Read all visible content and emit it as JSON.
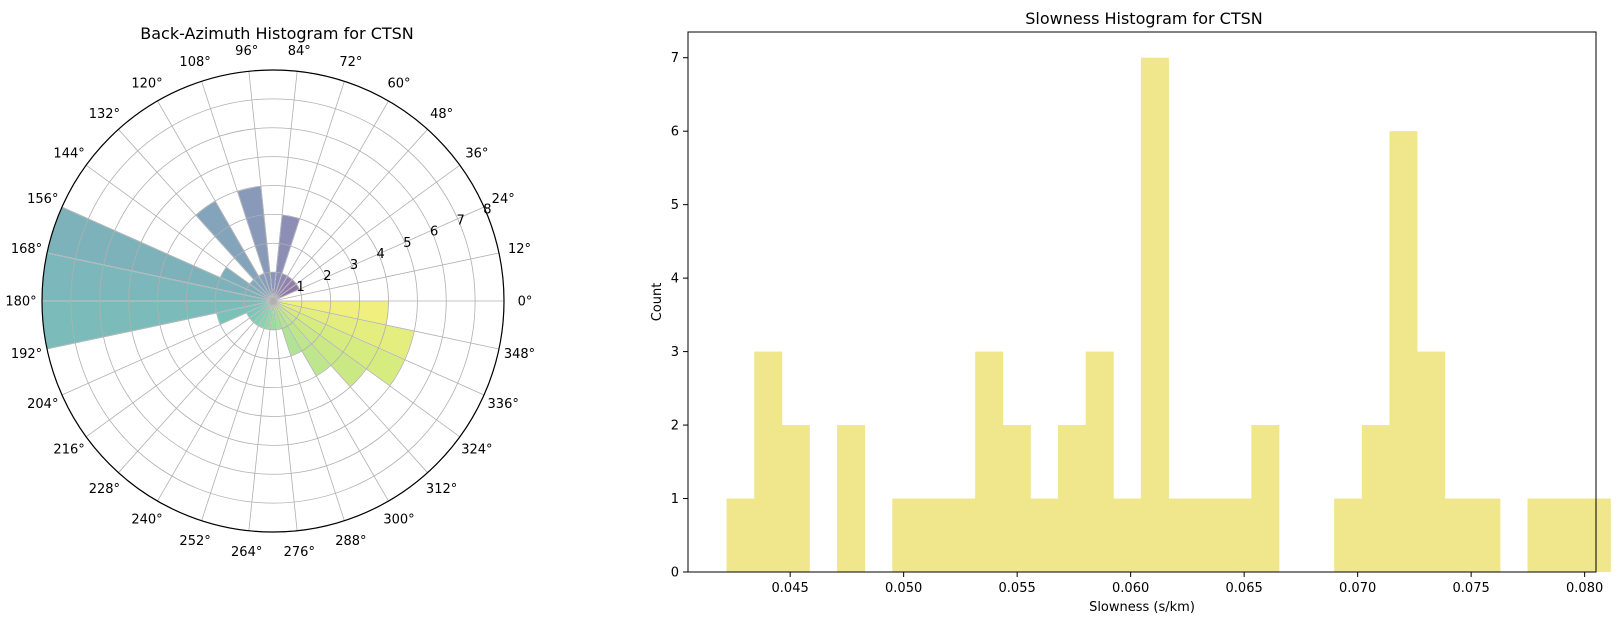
{
  "chart_data": [
    {
      "type": "polar-bar",
      "title": "Back-Azimuth Histogram for CTSN",
      "angle_ticks": [
        "0°",
        "12°",
        "24°",
        "36°",
        "48°",
        "60°",
        "72°",
        "84°",
        "96°",
        "108°",
        "120°",
        "132°",
        "144°",
        "156°",
        "168°",
        "180°",
        "192°",
        "204°",
        "216°",
        "228°",
        "240°",
        "252°",
        "264°",
        "276°",
        "288°",
        "300°",
        "312°",
        "324°",
        "336°",
        "348°"
      ],
      "radial_ticks": [
        "1",
        "2",
        "3",
        "4",
        "5",
        "6",
        "7",
        "8"
      ],
      "rlim": [
        0,
        8
      ],
      "bin_width_deg": 12,
      "bins": [
        {
          "start": 0,
          "count": 0
        },
        {
          "start": 12,
          "count": 0
        },
        {
          "start": 24,
          "count": 1
        },
        {
          "start": 36,
          "count": 1
        },
        {
          "start": 48,
          "count": 1
        },
        {
          "start": 60,
          "count": 1
        },
        {
          "start": 72,
          "count": 3
        },
        {
          "start": 84,
          "count": 1
        },
        {
          "start": 96,
          "count": 4
        },
        {
          "start": 108,
          "count": 1
        },
        {
          "start": 120,
          "count": 4
        },
        {
          "start": 132,
          "count": 1
        },
        {
          "start": 144,
          "count": 2
        },
        {
          "start": 156,
          "count": 8
        },
        {
          "start": 168,
          "count": 8
        },
        {
          "start": 180,
          "count": 8
        },
        {
          "start": 192,
          "count": 2
        },
        {
          "start": 204,
          "count": 1
        },
        {
          "start": 216,
          "count": 1
        },
        {
          "start": 228,
          "count": 1
        },
        {
          "start": 240,
          "count": 1
        },
        {
          "start": 252,
          "count": 1
        },
        {
          "start": 264,
          "count": 1
        },
        {
          "start": 276,
          "count": 1
        },
        {
          "start": 288,
          "count": 2
        },
        {
          "start": 300,
          "count": 3
        },
        {
          "start": 312,
          "count": 4
        },
        {
          "start": 324,
          "count": 5
        },
        {
          "start": 336,
          "count": 5
        },
        {
          "start": 348,
          "count": 4
        }
      ],
      "grid": true,
      "colormap": "viridis"
    },
    {
      "type": "histogram",
      "title": "Slowness Histogram for CTSN",
      "xlabel": "Slowness (s/km)",
      "ylabel": "Count",
      "xlim": [
        0.0405,
        0.0805
      ],
      "ylim": [
        0,
        7.35
      ],
      "x_ticks": [
        "0.045",
        "0.050",
        "0.055",
        "0.060",
        "0.065",
        "0.070",
        "0.075",
        "0.080"
      ],
      "x_tick_values": [
        0.045,
        0.05,
        0.055,
        0.06,
        0.065,
        0.07,
        0.075,
        0.08
      ],
      "y_ticks": [
        "0",
        "1",
        "2",
        "3",
        "4",
        "5",
        "6",
        "7"
      ],
      "bin_edges_start": 0.0422,
      "bin_width": 0.0012167,
      "counts": [
        1,
        3,
        2,
        0,
        2,
        0,
        1,
        1,
        1,
        3,
        2,
        1,
        2,
        3,
        1,
        7,
        1,
        1,
        1,
        2,
        0,
        0,
        1,
        2,
        6,
        3,
        1,
        1,
        0,
        1,
        1,
        1
      ],
      "bar_color": "#f0e68c",
      "grid": false
    }
  ]
}
